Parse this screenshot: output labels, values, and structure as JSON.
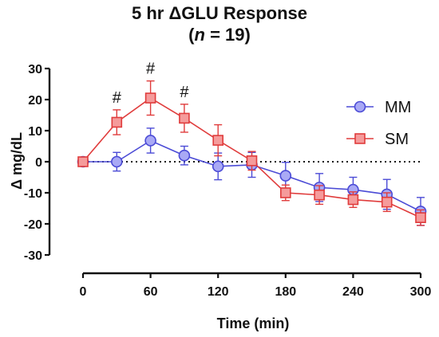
{
  "chart_data": {
    "type": "line",
    "title": "5 hr ΔGLU Response",
    "subtitle": {
      "prefix": "(",
      "n_symbol": "n",
      "rest": " = 19)"
    },
    "xlabel": "Time (min)",
    "ylabel": "Δ mg/dL",
    "xlim": [
      0,
      300
    ],
    "ylim": [
      -30,
      30
    ],
    "x": [
      0,
      30,
      60,
      90,
      120,
      150,
      180,
      210,
      240,
      270,
      300
    ],
    "x_ticks": [
      0,
      60,
      120,
      180,
      240,
      300
    ],
    "y_ticks": [
      30,
      20,
      10,
      0,
      -10,
      -20,
      -30
    ],
    "legend_position": "right",
    "grid": false,
    "zero_line": "dotted",
    "series": [
      {
        "name": "MM",
        "marker": "circle",
        "color": "#4b4bd6",
        "fill": "#a9a9f5",
        "values": [
          0,
          0,
          6.8,
          2,
          -1.5,
          -1,
          -4.5,
          -8.3,
          -9,
          -10.5,
          -16
        ],
        "errors": [
          0,
          3,
          4,
          3,
          4.3,
          4,
          4.3,
          4.5,
          4,
          4.8,
          4.5
        ]
      },
      {
        "name": "SM",
        "marker": "square",
        "color": "#e03c3c",
        "fill": "#f59b9b",
        "values": [
          0,
          12.7,
          20.5,
          14,
          6.9,
          0.3,
          -10,
          -10.7,
          -12.2,
          -13,
          -18
        ],
        "errors": [
          0,
          4,
          5.5,
          4.5,
          5,
          3,
          2.5,
          3,
          2.5,
          3,
          2.5
        ]
      }
    ],
    "annotations": [
      {
        "text": "#",
        "x": 30
      },
      {
        "text": "#",
        "x": 60
      },
      {
        "text": "#",
        "x": 90
      }
    ]
  }
}
